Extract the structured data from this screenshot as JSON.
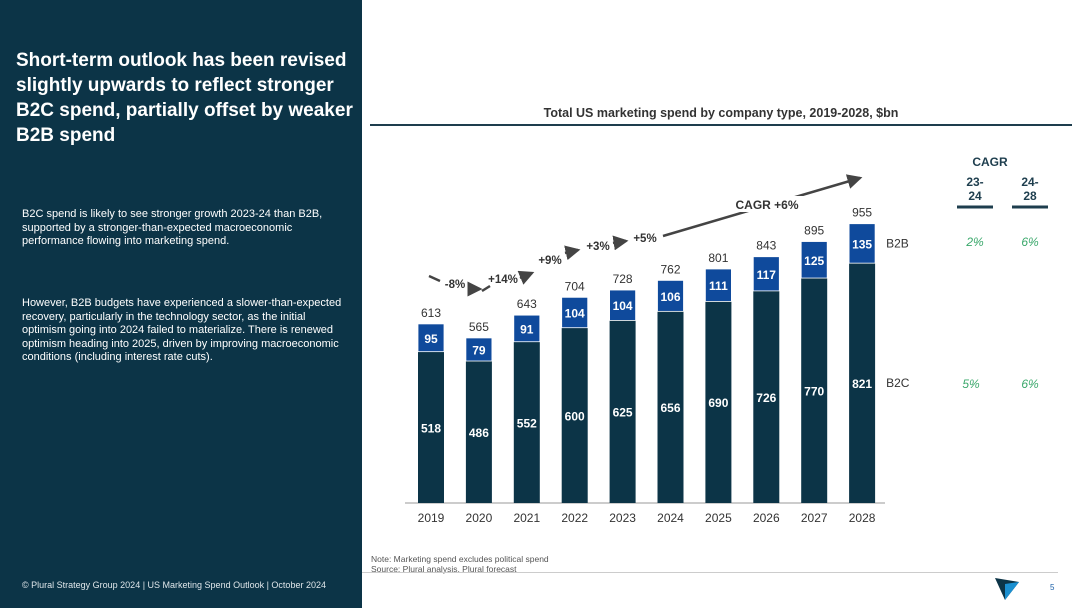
{
  "left": {
    "title": "Short-term outlook has been revised slightly upwards to reflect stronger B2C spend, partially offset by weaker B2B spend",
    "paragraph1": "B2C spend is likely to see stronger growth 2023-24 than B2B, supported by a stronger-than-expected macroeconomic performance flowing into marketing spend.",
    "paragraph2": "However, B2B budgets have experienced a slower-than-expected recovery, particularly in the technology sector, as the initial optimism going into 2024 failed to materialize. There is renewed optimism heading into 2025, driven by improving macroeconomic conditions (including interest rate cuts).",
    "footer": "© Plural Strategy Group 2024 | US Marketing Spend Outlook | October 2024"
  },
  "note": "Note: Marketing spend excludes political spend",
  "source": "Source: Plural analysis, Plural forecast",
  "page_number": "5",
  "colors": {
    "b2c": "#0c3447",
    "b2b": "#0f4a9c",
    "cagr": "#3aa86b"
  },
  "chart_data": {
    "type": "bar",
    "stacked": true,
    "title": "Total US marketing spend by company type, 2019-2028, $bn",
    "categories": [
      "2019",
      "2020",
      "2021",
      "2022",
      "2023",
      "2024",
      "2025",
      "2026",
      "2027",
      "2028"
    ],
    "series": [
      {
        "name": "B2C",
        "values": [
          518,
          486,
          552,
          600,
          625,
          656,
          690,
          726,
          770,
          821
        ]
      },
      {
        "name": "B2B",
        "values": [
          95,
          79,
          91,
          104,
          104,
          106,
          111,
          117,
          125,
          135
        ]
      }
    ],
    "totals": [
      613,
      565,
      643,
      704,
      728,
      762,
      801,
      843,
      895,
      955
    ],
    "growth_labels": [
      "-8%",
      "+14%",
      "+9%",
      "+3%",
      "+5%"
    ],
    "cagr_label": "CAGR +6%",
    "cagr_table": {
      "header": "CAGR",
      "columns": [
        "23-\n24",
        "24-\n28"
      ],
      "col1_lines": [
        "23-",
        "24"
      ],
      "col2_lines": [
        "24-",
        "28"
      ],
      "rows": [
        {
          "name": "B2B",
          "values": [
            "2%",
            "6%"
          ]
        },
        {
          "name": "B2C",
          "values": [
            "5%",
            "6%"
          ]
        }
      ]
    },
    "ylim": [
      0,
      1000
    ]
  }
}
